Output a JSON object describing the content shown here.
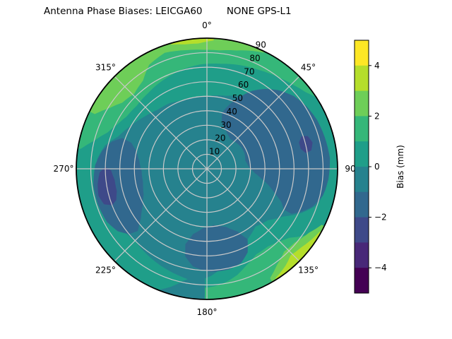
{
  "chart_data": {
    "type": "polar_contour",
    "title": "Antenna Phase Biases: LEICGA60        NONE GPS-L1",
    "angular_axis": {
      "units": "degrees azimuth, 0 at top, clockwise",
      "ticks": [
        {
          "deg": 0,
          "label": "0°"
        },
        {
          "deg": 45,
          "label": "45°"
        },
        {
          "deg": 90,
          "label": "90"
        },
        {
          "deg": 135,
          "label": "135°"
        },
        {
          "deg": 180,
          "label": "180°"
        },
        {
          "deg": 225,
          "label": "225°"
        },
        {
          "deg": 270,
          "label": "270°"
        },
        {
          "deg": 315,
          "label": "315°"
        }
      ]
    },
    "radial_axis": {
      "units": "zenith angle (deg)",
      "min": 0,
      "max": 90,
      "ticks": [
        10,
        20,
        30,
        40,
        50,
        60,
        70,
        80,
        90
      ],
      "label_angle_deg": 23.5
    },
    "colorbar": {
      "label": "Bias (mm)",
      "vmin": -5,
      "vmax": 5,
      "ticks": [
        {
          "value": 4,
          "label": "4"
        },
        {
          "value": 2,
          "label": "2"
        },
        {
          "value": 0,
          "label": "0"
        },
        {
          "value": -2,
          "label": "−2"
        },
        {
          "value": -4,
          "label": "−4"
        }
      ],
      "levels": [
        -5,
        -4,
        -3,
        -2,
        -1,
        0,
        1,
        2,
        3,
        4,
        5
      ],
      "colors": [
        "#440154",
        "#482878",
        "#3e4989",
        "#31688e",
        "#26828e",
        "#1f9e89",
        "#35b779",
        "#6ece58",
        "#b5de2b",
        "#fde725"
      ]
    },
    "grid_color": "#c9c9c9",
    "outline_color": "#000000",
    "regions": [
      {
        "name": "base-disk",
        "type": "disk",
        "level": 4,
        "r": 90
      },
      {
        "name": "tealgreen-outer-ring",
        "type": "ring",
        "level": 5,
        "outer": 90,
        "inner": [
          [
            0,
            50
          ],
          [
            15,
            52
          ],
          [
            30,
            57
          ],
          [
            45,
            63
          ],
          [
            55,
            70
          ],
          [
            62,
            78
          ],
          [
            70,
            82
          ],
          [
            80,
            84
          ],
          [
            90,
            84
          ],
          [
            100,
            83
          ],
          [
            108,
            80
          ],
          [
            115,
            72
          ],
          [
            122,
            62
          ],
          [
            130,
            55
          ],
          [
            140,
            52
          ],
          [
            150,
            56
          ],
          [
            160,
            62
          ],
          [
            170,
            68
          ],
          [
            178,
            74
          ],
          [
            186,
            78
          ],
          [
            195,
            76
          ],
          [
            205,
            74
          ],
          [
            215,
            72
          ],
          [
            225,
            70
          ],
          [
            235,
            72
          ],
          [
            245,
            74
          ],
          [
            255,
            75
          ],
          [
            265,
            76
          ],
          [
            275,
            76
          ],
          [
            283,
            72
          ],
          [
            290,
            65
          ],
          [
            300,
            60
          ],
          [
            310,
            56
          ],
          [
            320,
            53
          ],
          [
            330,
            52
          ],
          [
            340,
            50
          ],
          [
            350,
            50
          ],
          [
            360,
            50
          ]
        ]
      },
      {
        "name": "green-arc-top",
        "type": "ring-segment",
        "level": 6,
        "outer": 90,
        "a0": 279,
        "a1": 417,
        "inner": [
          [
            279,
            88
          ],
          [
            284,
            80
          ],
          [
            290,
            73
          ],
          [
            296,
            69
          ],
          [
            303,
            66
          ],
          [
            312,
            65
          ],
          [
            322,
            66
          ],
          [
            333,
            68
          ],
          [
            344,
            70
          ],
          [
            356,
            72
          ],
          [
            368,
            73
          ],
          [
            378,
            75
          ],
          [
            388,
            77
          ],
          [
            398,
            80
          ],
          [
            406,
            83
          ],
          [
            412,
            86
          ],
          [
            417,
            90
          ]
        ]
      },
      {
        "name": "green-arc-bottom",
        "type": "ring-segment",
        "level": 6,
        "outer": 90,
        "a0": 118,
        "a1": 181,
        "inner": [
          [
            118,
            89
          ],
          [
            124,
            82
          ],
          [
            130,
            74
          ],
          [
            136,
            70
          ],
          [
            142,
            68
          ],
          [
            150,
            68
          ],
          [
            158,
            72
          ],
          [
            164,
            76
          ],
          [
            170,
            79
          ],
          [
            176,
            81
          ],
          [
            181,
            82
          ]
        ]
      },
      {
        "name": "lightgreen-arc-top",
        "type": "ring-segment",
        "level": 7,
        "outer": 90,
        "a0": 296,
        "a1": 386,
        "inner": [
          [
            296,
            86
          ],
          [
            302,
            79
          ],
          [
            308,
            74
          ],
          [
            316,
            72
          ],
          [
            324,
            75
          ],
          [
            331,
            82
          ],
          [
            340,
            85
          ],
          [
            350,
            83
          ],
          [
            358,
            82
          ],
          [
            366,
            82
          ],
          [
            374,
            84
          ],
          [
            381,
            87
          ],
          [
            386,
            89
          ]
        ]
      },
      {
        "name": "lightgreen-arc-bottomright",
        "type": "ring-segment",
        "level": 7,
        "outer": 90,
        "a0": 116,
        "a1": 150,
        "inner": [
          [
            116,
            88
          ],
          [
            122,
            83
          ],
          [
            130,
            79
          ],
          [
            137,
            78
          ],
          [
            144,
            82
          ],
          [
            150,
            87
          ]
        ]
      },
      {
        "name": "yellowgreen-sliver-top",
        "type": "ring-segment",
        "level": 8,
        "outer": 90,
        "a0": 344,
        "a1": 363,
        "inner": [
          [
            344,
            89
          ],
          [
            350,
            87
          ],
          [
            356,
            86.5
          ],
          [
            363,
            88.5
          ]
        ]
      },
      {
        "name": "yellowgreen-sliver-bottomright",
        "type": "ring-segment",
        "level": 8,
        "outer": 90,
        "a0": 119,
        "a1": 148,
        "inner": [
          [
            119,
            89
          ],
          [
            124,
            87
          ],
          [
            130,
            84.5
          ],
          [
            136,
            83
          ],
          [
            141,
            86
          ],
          [
            148,
            89
          ]
        ]
      },
      {
        "name": "teal-rim-wedge-bottom",
        "type": "ring-segment",
        "level": 4,
        "outer": 90,
        "a0": 181,
        "a1": 201,
        "inner": [
          [
            181,
            72
          ],
          [
            186,
            74
          ],
          [
            192,
            79
          ],
          [
            197,
            85
          ],
          [
            201,
            89
          ]
        ]
      },
      {
        "name": "blue-left",
        "type": "poly",
        "level": 3,
        "pts": [
          [
            228,
            64
          ],
          [
            230,
            70
          ],
          [
            235,
            75
          ],
          [
            242,
            78
          ],
          [
            252,
            79
          ],
          [
            262,
            79
          ],
          [
            272,
            77
          ],
          [
            280,
            73
          ],
          [
            286,
            68
          ],
          [
            290,
            62
          ],
          [
            289,
            55
          ],
          [
            284,
            50
          ],
          [
            277,
            47
          ],
          [
            268,
            45
          ],
          [
            258,
            45
          ],
          [
            248,
            47
          ],
          [
            240,
            51
          ],
          [
            233,
            57
          ]
        ]
      },
      {
        "name": "blue-topright",
        "type": "poly",
        "level": 3,
        "pts": [
          [
            15,
            40
          ],
          [
            20,
            48
          ],
          [
            25,
            55
          ],
          [
            30,
            62
          ],
          [
            36,
            68
          ],
          [
            42,
            73
          ],
          [
            50,
            78
          ],
          [
            58,
            81
          ],
          [
            66,
            83
          ],
          [
            75,
            84
          ],
          [
            85,
            85
          ],
          [
            95,
            84
          ],
          [
            103,
            82
          ],
          [
            110,
            77
          ],
          [
            114,
            72
          ],
          [
            118,
            66
          ],
          [
            118,
            60
          ],
          [
            114,
            56
          ],
          [
            110,
            50
          ],
          [
            105,
            44
          ],
          [
            100,
            38
          ],
          [
            95,
            33
          ],
          [
            88,
            29
          ],
          [
            78,
            27
          ],
          [
            68,
            28
          ],
          [
            58,
            28
          ],
          [
            48,
            27
          ],
          [
            38,
            26
          ],
          [
            30,
            28
          ],
          [
            22,
            31
          ],
          [
            17,
            35
          ]
        ]
      },
      {
        "name": "blue-bottom",
        "type": "poly",
        "level": 3,
        "pts": [
          [
            150,
            56
          ],
          [
            154,
            64
          ],
          [
            160,
            69
          ],
          [
            168,
            71
          ],
          [
            178,
            71
          ],
          [
            188,
            68
          ],
          [
            194,
            62
          ],
          [
            196,
            54
          ],
          [
            192,
            46
          ],
          [
            184,
            41
          ],
          [
            173,
            39
          ],
          [
            162,
            42
          ],
          [
            154,
            48
          ]
        ]
      },
      {
        "name": "darkblue-core-left",
        "type": "poly",
        "level": 2,
        "pts": [
          [
            249,
            70
          ],
          [
            251,
            75
          ],
          [
            256,
            77
          ],
          [
            262,
            76
          ],
          [
            268,
            74
          ],
          [
            271,
            70
          ],
          [
            269,
            66
          ],
          [
            263,
            64
          ],
          [
            256,
            64
          ],
          [
            251,
            66
          ]
        ]
      },
      {
        "name": "darkblue-core-right",
        "type": "poly",
        "level": 2,
        "pts": [
          [
            71,
            69
          ],
          [
            72,
            73
          ],
          [
            76,
            75
          ],
          [
            80,
            73
          ],
          [
            81,
            69
          ],
          [
            78,
            66
          ],
          [
            74,
            66
          ]
        ]
      }
    ]
  }
}
